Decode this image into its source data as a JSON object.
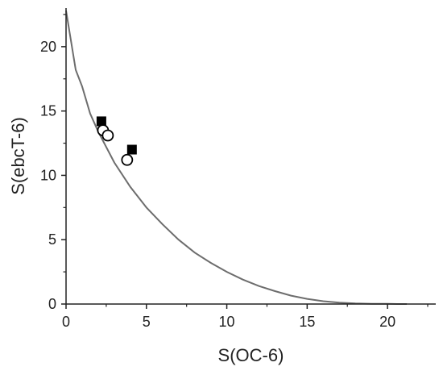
{
  "chart_data": {
    "type": "scatter",
    "xlabel": "S(OC-6)",
    "ylabel": "S(ebcT-6)",
    "xlim": [
      0,
      23
    ],
    "ylim": [
      0,
      23
    ],
    "xticks": [
      0,
      5,
      10,
      15,
      20
    ],
    "yticks": [
      0,
      5,
      10,
      15,
      20
    ],
    "x_tick_labels": [
      "0",
      "5",
      "10",
      "15",
      "20"
    ],
    "y_tick_labels": [
      "0",
      "5",
      "10",
      "15",
      "20"
    ],
    "grid": false,
    "legend": "none",
    "colors": {
      "axis": "#222222",
      "curve": "#6d6d6d",
      "filled_marker": "#000000",
      "open_marker_fill": "#ffffff"
    },
    "curve": {
      "x": [
        0,
        0.3,
        0.6,
        1,
        1.5,
        2,
        3,
        4,
        5,
        6,
        7,
        8,
        9,
        10,
        11,
        12,
        13,
        14,
        15,
        16,
        17,
        18,
        19,
        20,
        20.6,
        21.2
      ],
      "y": [
        22.8,
        20.5,
        18.2,
        16.9,
        14.8,
        13.4,
        11.0,
        9.1,
        7.5,
        6.2,
        5.0,
        4.0,
        3.2,
        2.5,
        1.9,
        1.4,
        1.0,
        0.65,
        0.4,
        0.22,
        0.11,
        0.05,
        0.02,
        0.01,
        0.0,
        0.0
      ]
    },
    "series": [
      {
        "marker": "filled-square",
        "x": [
          2.2,
          4.1
        ],
        "y": [
          14.2,
          12.0
        ]
      },
      {
        "marker": "open-circle",
        "x": [
          2.3,
          2.6,
          3.8
        ],
        "y": [
          13.5,
          13.1,
          11.2
        ]
      }
    ]
  }
}
